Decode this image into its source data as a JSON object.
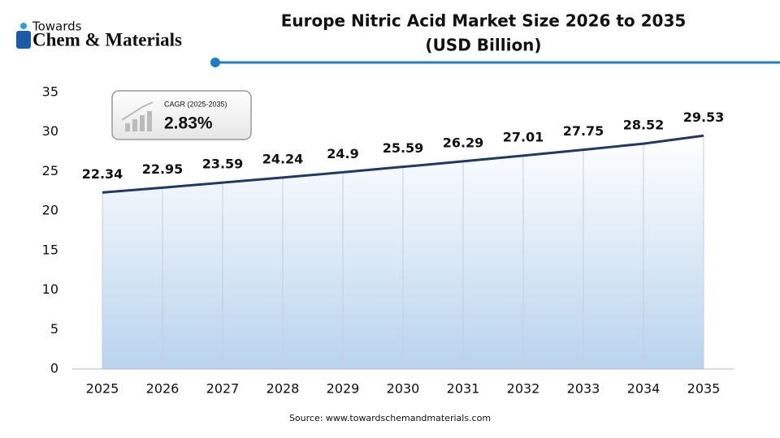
{
  "logo": {
    "line1": "Towards",
    "line2": "Chem & Materials"
  },
  "chart_data": {
    "type": "line",
    "title": "Europe Nitric Acid Market Size 2026 to 2035",
    "subtitle": "(USD Billion)",
    "categories": [
      "2025",
      "2026",
      "2027",
      "2028",
      "2029",
      "2030",
      "2031",
      "2032",
      "2033",
      "2034",
      "2035"
    ],
    "values": [
      22.34,
      22.95,
      23.59,
      24.24,
      24.9,
      25.59,
      26.29,
      27.01,
      27.75,
      28.52,
      29.53
    ],
    "color": "#1f3864",
    "ylim": [
      0,
      35
    ],
    "yticks": [
      0,
      5,
      10,
      15,
      20,
      25,
      30,
      35
    ],
    "grid": false,
    "annotation": {
      "label": "CAGR (2025-2035)",
      "value": "2.83%"
    },
    "source": "Source: www.towardschemandmaterials.com"
  }
}
